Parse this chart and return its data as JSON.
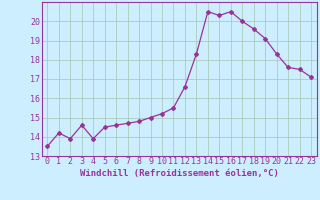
{
  "x": [
    0,
    1,
    2,
    3,
    4,
    5,
    6,
    7,
    8,
    9,
    10,
    11,
    12,
    13,
    14,
    15,
    16,
    17,
    18,
    19,
    20,
    21,
    22,
    23
  ],
  "y": [
    13.5,
    14.2,
    13.9,
    14.6,
    13.9,
    14.5,
    14.6,
    14.7,
    14.8,
    15.0,
    15.2,
    15.5,
    16.6,
    18.3,
    20.5,
    20.3,
    20.5,
    20.0,
    19.6,
    19.1,
    18.3,
    17.6,
    17.5,
    17.1
  ],
  "line_color": "#993399",
  "marker": "D",
  "marker_size": 2,
  "bg_color": "#cceeff",
  "grid_color": "#aaccbb",
  "xlabel": "Windchill (Refroidissement éolien,°C)",
  "ylim": [
    13,
    21
  ],
  "xlim": [
    -0.5,
    23.5
  ],
  "yticks": [
    13,
    14,
    15,
    16,
    17,
    18,
    19,
    20
  ],
  "xticks": [
    0,
    1,
    2,
    3,
    4,
    5,
    6,
    7,
    8,
    9,
    10,
    11,
    12,
    13,
    14,
    15,
    16,
    17,
    18,
    19,
    20,
    21,
    22,
    23
  ],
  "xlabel_fontsize": 6.5,
  "tick_fontsize": 6.0
}
